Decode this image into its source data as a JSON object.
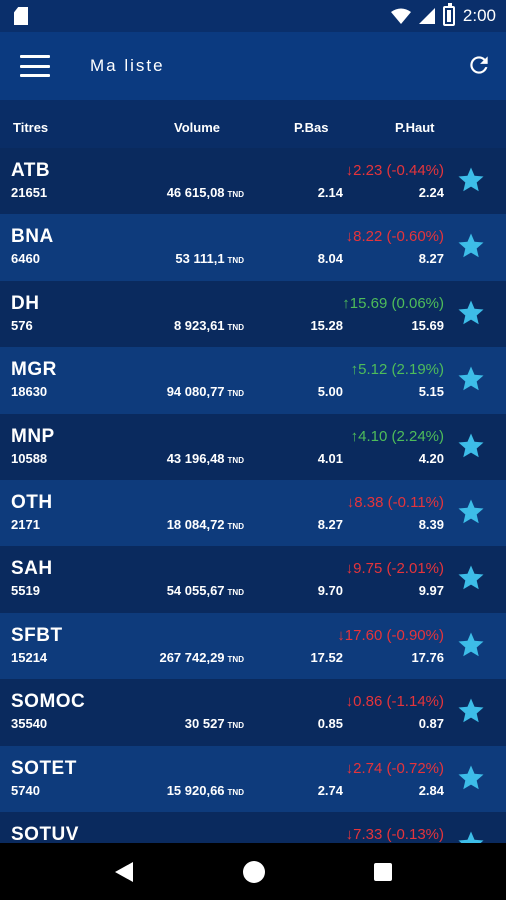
{
  "status": {
    "time": "2:00"
  },
  "appbar": {
    "title": "Ma liste",
    "menu_icon": "hamburger-menu-icon",
    "refresh_icon": "refresh-icon"
  },
  "columns": {
    "titres": "Titres",
    "volume": "Volume",
    "pbas": "P.Bas",
    "phaut": "P.Haut"
  },
  "colors": {
    "down": "#e5343b",
    "up": "#4ebc5a",
    "star": "#3dbde8"
  },
  "stocks": [
    {
      "ticker": "ATB",
      "qty": "21651",
      "volume": "46 615,08",
      "unit": "TND",
      "change": "2.23 (-0.44%)",
      "dir": "down",
      "pbas": "2.14",
      "phaut": "2.24"
    },
    {
      "ticker": "BNA",
      "qty": "6460",
      "volume": "53 111,1",
      "unit": "TND",
      "change": "8.22 (-0.60%)",
      "dir": "down",
      "pbas": "8.04",
      "phaut": "8.27"
    },
    {
      "ticker": "DH",
      "qty": "576",
      "volume": "8 923,61",
      "unit": "TND",
      "change": "15.69 (0.06%)",
      "dir": "up",
      "pbas": "15.28",
      "phaut": "15.69"
    },
    {
      "ticker": "MGR",
      "qty": "18630",
      "volume": "94 080,77",
      "unit": "TND",
      "change": "5.12 (2.19%)",
      "dir": "up",
      "pbas": "5.00",
      "phaut": "5.15"
    },
    {
      "ticker": "MNP",
      "qty": "10588",
      "volume": "43 196,48",
      "unit": "TND",
      "change": "4.10 (2.24%)",
      "dir": "up",
      "pbas": "4.01",
      "phaut": "4.20"
    },
    {
      "ticker": "OTH",
      "qty": "2171",
      "volume": "18 084,72",
      "unit": "TND",
      "change": "8.38 (-0.11%)",
      "dir": "down",
      "pbas": "8.27",
      "phaut": "8.39"
    },
    {
      "ticker": "SAH",
      "qty": "5519",
      "volume": "54 055,67",
      "unit": "TND",
      "change": "9.75 (-2.01%)",
      "dir": "down",
      "pbas": "9.70",
      "phaut": "9.97"
    },
    {
      "ticker": "SFBT",
      "qty": "15214",
      "volume": "267 742,29",
      "unit": "TND",
      "change": "17.60 (-0.90%)",
      "dir": "down",
      "pbas": "17.52",
      "phaut": "17.76"
    },
    {
      "ticker": "SOMOC",
      "qty": "35540",
      "volume": "30 527",
      "unit": "TND",
      "change": "0.86 (-1.14%)",
      "dir": "down",
      "pbas": "0.85",
      "phaut": "0.87"
    },
    {
      "ticker": "SOTET",
      "qty": "5740",
      "volume": "15 920,66",
      "unit": "TND",
      "change": "2.74 (-0.72%)",
      "dir": "down",
      "pbas": "2.74",
      "phaut": "2.84"
    },
    {
      "ticker": "SOTUV",
      "qty": "",
      "volume": "",
      "unit": "",
      "change": "7.33 (-0.13%)",
      "dir": "down",
      "pbas": "",
      "phaut": ""
    }
  ]
}
